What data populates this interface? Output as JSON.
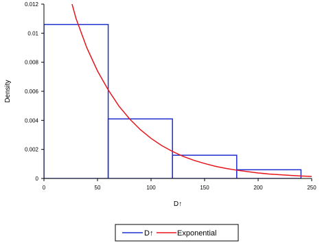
{
  "chart_data": {
    "type": "bar",
    "xlabel": "D↑",
    "ylabel": "Density",
    "xlim": [
      0,
      250
    ],
    "ylim": [
      0,
      0.012
    ],
    "xticks": [
      0,
      50,
      100,
      150,
      200,
      250
    ],
    "xtick_labels": [
      "0",
      "50",
      "100",
      "150",
      "200",
      "250"
    ],
    "yticks": [
      0,
      0.002,
      0.004,
      0.006,
      0.008,
      0.01,
      0.012
    ],
    "ytick_labels": [
      "0",
      "0.002",
      "0.004",
      "0.006",
      "0.008",
      "0.01",
      "0.012"
    ],
    "grid": false,
    "legend_position": "bottom",
    "series": [
      {
        "name": "D↑",
        "type": "histogram",
        "color": "#1f2ecf",
        "bins": [
          {
            "x0": 0,
            "x1": 60,
            "value": 0.0106
          },
          {
            "x0": 60,
            "x1": 120,
            "value": 0.0041
          },
          {
            "x0": 120,
            "x1": 180,
            "value": 0.0016
          },
          {
            "x0": 180,
            "x1": 240,
            "value": 0.0006
          }
        ]
      },
      {
        "name": "Exponential",
        "type": "line",
        "color": "#e8141c",
        "x": [
          24,
          30,
          40,
          50,
          60,
          70,
          80,
          90,
          100,
          110,
          120,
          130,
          140,
          150,
          160,
          170,
          180,
          190,
          200,
          210,
          220,
          230,
          240,
          250
        ],
        "y": [
          0.0126,
          0.011,
          0.009,
          0.0074,
          0.0061,
          0.00498,
          0.0041,
          0.00336,
          0.00276,
          0.00226,
          0.00186,
          0.00152,
          0.00125,
          0.00103,
          0.00084,
          0.00069,
          0.00057,
          0.00047,
          0.00038,
          0.00031,
          0.00026,
          0.00021,
          0.00017,
          0.00014
        ]
      }
    ]
  }
}
